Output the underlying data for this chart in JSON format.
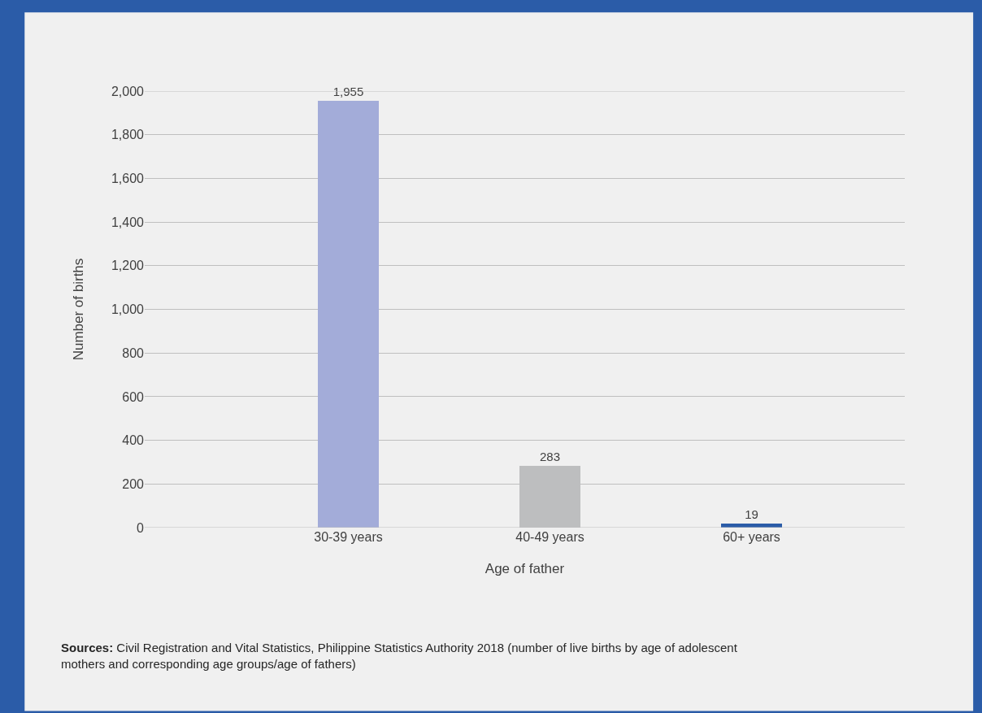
{
  "chart_data": {
    "type": "bar",
    "categories": [
      "30-39 years",
      "40-49 years",
      "60+ years"
    ],
    "values": [
      1955,
      283,
      19
    ],
    "colors": [
      "#a3acd9",
      "#bdbebf",
      "#2b5ca8"
    ],
    "value_labels": [
      "1,955",
      "283",
      "19"
    ],
    "xlabel": "Age of father",
    "ylabel": "Number of births",
    "ylim": [
      0,
      2000
    ],
    "yticks": [
      {
        "value": 0,
        "label": "0"
      },
      {
        "value": 200,
        "label": "200"
      },
      {
        "value": 400,
        "label": "400"
      },
      {
        "value": 600,
        "label": "600"
      },
      {
        "value": 800,
        "label": "800"
      },
      {
        "value": 1000,
        "label": "1,000"
      },
      {
        "value": 1200,
        "label": "1,200"
      },
      {
        "value": 1400,
        "label": "1,400"
      },
      {
        "value": 1600,
        "label": "1,600"
      },
      {
        "value": 1800,
        "label": "1,800"
      },
      {
        "value": 2000,
        "label": "2,000"
      }
    ],
    "grid": "y",
    "annotations": [
      "Sources: Civil Registration and Vital Statistics, Philippine Statistics Authority 2018 (number of live births by age of adolescent mothers and corresponding age groups/age of fathers)"
    ]
  }
}
